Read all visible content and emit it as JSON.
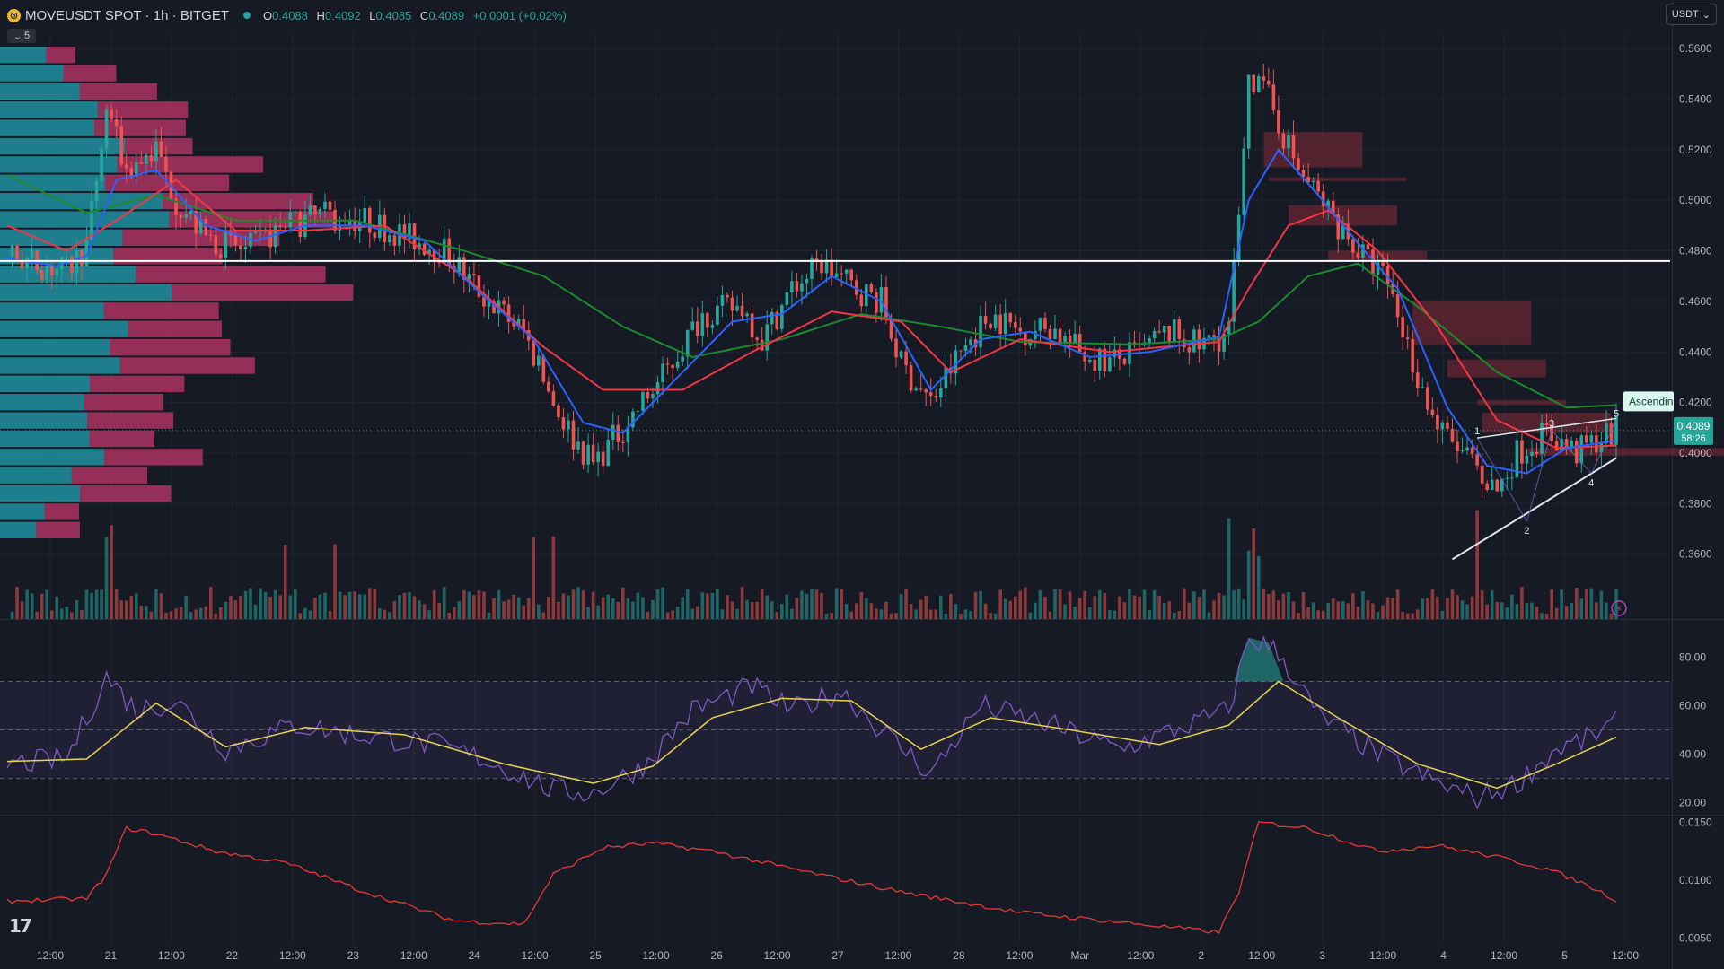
{
  "header": {
    "symbol": "MOVEUSDT SPOT · 1h · BITGET",
    "coin_glyph": "◎",
    "ohlc": {
      "o_label": "O",
      "o": "0.4088",
      "h_label": "H",
      "h": "0.4092",
      "l_label": "L",
      "l": "0.4085",
      "c_label": "C",
      "c": "0.4089",
      "change": "+0.0001 (+0.02%)"
    },
    "collapse_count": "5",
    "currency": "USDT"
  },
  "colors": {
    "background": "#161a25",
    "up": "#26a69a",
    "down": "#ef5350",
    "ema_fast": "#2962ff",
    "ema_mid": "#f23645",
    "ema_slow": "#1b8a2c",
    "rsi": "#7e57c2",
    "rsi_ma": "#e8d352",
    "atr": "#e53935",
    "vp_up": "#23a0b0",
    "vp_down": "#c7386b"
  },
  "chart_data": [
    {
      "type": "candlestick",
      "pane": "price",
      "ylim": [
        0.345,
        0.565
      ],
      "y_ticks": [
        "0.5600",
        "0.5400",
        "0.5200",
        "0.5000",
        "0.4800",
        "0.4600",
        "0.4400",
        "0.4200",
        "0.4000",
        "0.3800",
        "0.3600"
      ],
      "x_ticks": [
        "12:00",
        "21",
        "12:00",
        "22",
        "12:00",
        "23",
        "12:00",
        "24",
        "12:00",
        "25",
        "12:00",
        "26",
        "12:00",
        "27",
        "12:00",
        "28",
        "12:00",
        "Mar",
        "12:00",
        "2",
        "12:00",
        "3",
        "12:00",
        "4",
        "12:00",
        "5",
        "12:00"
      ],
      "close_path": [
        [
          0,
          0.478
        ],
        [
          8,
          0.474
        ],
        [
          12,
          0.472
        ],
        [
          16,
          0.482
        ],
        [
          20,
          0.535
        ],
        [
          24,
          0.512
        ],
        [
          30,
          0.52
        ],
        [
          34,
          0.5
        ],
        [
          40,
          0.485
        ],
        [
          48,
          0.48
        ],
        [
          56,
          0.49
        ],
        [
          64,
          0.494
        ],
        [
          72,
          0.492
        ],
        [
          80,
          0.486
        ],
        [
          88,
          0.48
        ],
        [
          96,
          0.462
        ],
        [
          104,
          0.448
        ],
        [
          110,
          0.42
        ],
        [
          114,
          0.406
        ],
        [
          118,
          0.396
        ],
        [
          124,
          0.41
        ],
        [
          132,
          0.43
        ],
        [
          140,
          0.455
        ],
        [
          148,
          0.458
        ],
        [
          152,
          0.445
        ],
        [
          158,
          0.465
        ],
        [
          164,
          0.475
        ],
        [
          170,
          0.466
        ],
        [
          176,
          0.46
        ],
        [
          180,
          0.435
        ],
        [
          186,
          0.42
        ],
        [
          192,
          0.44
        ],
        [
          198,
          0.455
        ],
        [
          204,
          0.448
        ],
        [
          210,
          0.45
        ],
        [
          216,
          0.44
        ],
        [
          222,
          0.436
        ],
        [
          228,
          0.44
        ],
        [
          234,
          0.448
        ],
        [
          240,
          0.442
        ],
        [
          246,
          0.448
        ],
        [
          250,
          0.55
        ],
        [
          254,
          0.54
        ],
        [
          260,
          0.512
        ],
        [
          266,
          0.496
        ],
        [
          272,
          0.48
        ],
        [
          278,
          0.468
        ],
        [
          284,
          0.43
        ],
        [
          288,
          0.41
        ],
        [
          294,
          0.398
        ],
        [
          300,
          0.385
        ],
        [
          304,
          0.4
        ],
        [
          310,
          0.408
        ],
        [
          316,
          0.4
        ],
        [
          320,
          0.405
        ],
        [
          324,
          0.4089
        ]
      ],
      "ema_fast_path": [
        [
          0,
          0.477
        ],
        [
          10,
          0.474
        ],
        [
          16,
          0.478
        ],
        [
          22,
          0.508
        ],
        [
          30,
          0.512
        ],
        [
          40,
          0.49
        ],
        [
          50,
          0.484
        ],
        [
          60,
          0.49
        ],
        [
          72,
          0.49
        ],
        [
          84,
          0.484
        ],
        [
          96,
          0.462
        ],
        [
          106,
          0.445
        ],
        [
          116,
          0.412
        ],
        [
          124,
          0.408
        ],
        [
          134,
          0.428
        ],
        [
          146,
          0.452
        ],
        [
          156,
          0.455
        ],
        [
          166,
          0.47
        ],
        [
          176,
          0.46
        ],
        [
          186,
          0.425
        ],
        [
          196,
          0.445
        ],
        [
          206,
          0.448
        ],
        [
          218,
          0.438
        ],
        [
          230,
          0.44
        ],
        [
          244,
          0.446
        ],
        [
          250,
          0.5
        ],
        [
          256,
          0.52
        ],
        [
          264,
          0.502
        ],
        [
          272,
          0.483
        ],
        [
          280,
          0.465
        ],
        [
          290,
          0.418
        ],
        [
          298,
          0.395
        ],
        [
          306,
          0.392
        ],
        [
          314,
          0.402
        ],
        [
          324,
          0.405
        ]
      ],
      "ema_mid_path": [
        [
          0,
          0.49
        ],
        [
          12,
          0.48
        ],
        [
          22,
          0.492
        ],
        [
          34,
          0.508
        ],
        [
          46,
          0.488
        ],
        [
          60,
          0.488
        ],
        [
          76,
          0.49
        ],
        [
          92,
          0.47
        ],
        [
          108,
          0.442
        ],
        [
          120,
          0.425
        ],
        [
          136,
          0.425
        ],
        [
          150,
          0.44
        ],
        [
          166,
          0.456
        ],
        [
          180,
          0.452
        ],
        [
          190,
          0.432
        ],
        [
          204,
          0.445
        ],
        [
          222,
          0.44
        ],
        [
          244,
          0.444
        ],
        [
          250,
          0.465
        ],
        [
          258,
          0.49
        ],
        [
          266,
          0.496
        ],
        [
          276,
          0.48
        ],
        [
          288,
          0.45
        ],
        [
          300,
          0.413
        ],
        [
          312,
          0.402
        ],
        [
          324,
          0.403
        ]
      ],
      "ema_slow_path": [
        [
          0,
          0.51
        ],
        [
          16,
          0.495
        ],
        [
          30,
          0.502
        ],
        [
          46,
          0.492
        ],
        [
          70,
          0.492
        ],
        [
          92,
          0.48
        ],
        [
          108,
          0.47
        ],
        [
          124,
          0.45
        ],
        [
          138,
          0.438
        ],
        [
          156,
          0.445
        ],
        [
          172,
          0.455
        ],
        [
          188,
          0.45
        ],
        [
          204,
          0.444
        ],
        [
          226,
          0.443
        ],
        [
          244,
          0.445
        ],
        [
          252,
          0.452
        ],
        [
          262,
          0.47
        ],
        [
          272,
          0.475
        ],
        [
          284,
          0.458
        ],
        [
          300,
          0.432
        ],
        [
          314,
          0.418
        ],
        [
          324,
          0.419
        ]
      ],
      "horizontal_line": 0.476,
      "pattern": {
        "name": "Ascendin",
        "points": [
          {
            "label": "1",
            "x": 296,
            "y": 0.406
          },
          {
            "label": "2",
            "x": 306,
            "y": 0.373
          },
          {
            "label": "3",
            "x": 311,
            "y": 0.409
          },
          {
            "label": "4",
            "x": 319,
            "y": 0.392
          },
          {
            "label": "5",
            "x": 324,
            "y": 0.413
          }
        ]
      },
      "price_tag": {
        "value": "0.4089",
        "countdown": "58:26"
      }
    },
    {
      "type": "line",
      "pane": "rsi",
      "ylim": [
        18,
        92
      ],
      "y_ticks": [
        "80.00",
        "60.00",
        "40.00",
        "20.00"
      ],
      "bands": [
        30,
        50,
        70
      ],
      "series": [
        {
          "values": [
            [
              0,
              36
            ],
            [
              12,
              38
            ],
            [
              20,
              72
            ],
            [
              26,
              58
            ],
            [
              34,
              62
            ],
            [
              44,
              42
            ],
            [
              58,
              52
            ],
            [
              70,
              48
            ],
            [
              86,
              44
            ],
            [
              96,
              38
            ],
            [
              110,
              25
            ],
            [
              118,
              24
            ],
            [
              128,
              35
            ],
            [
              138,
              58
            ],
            [
              150,
              68
            ],
            [
              158,
              58
            ],
            [
              168,
              66
            ],
            [
              176,
              50
            ],
            [
              186,
              32
            ],
            [
              196,
              60
            ],
            [
              210,
              52
            ],
            [
              224,
              42
            ],
            [
              238,
              52
            ],
            [
              246,
              58
            ],
            [
              250,
              88
            ],
            [
              256,
              82
            ],
            [
              264,
              56
            ],
            [
              276,
              40
            ],
            [
              288,
              28
            ],
            [
              296,
              22
            ],
            [
              304,
              28
            ],
            [
              312,
              42
            ],
            [
              318,
              46
            ],
            [
              324,
              53
            ]
          ]
        },
        {
          "values": [
            [
              0,
              37
            ],
            [
              16,
              38
            ],
            [
              30,
              61
            ],
            [
              44,
              43
            ],
            [
              60,
              51
            ],
            [
              80,
              48
            ],
            [
              100,
              36
            ],
            [
              118,
              28
            ],
            [
              130,
              35
            ],
            [
              142,
              55
            ],
            [
              156,
              63
            ],
            [
              170,
              62
            ],
            [
              184,
              42
            ],
            [
              198,
              55
            ],
            [
              214,
              50
            ],
            [
              232,
              44
            ],
            [
              246,
              52
            ],
            [
              256,
              70
            ],
            [
              268,
              55
            ],
            [
              284,
              36
            ],
            [
              300,
              26
            ],
            [
              312,
              36
            ],
            [
              324,
              47
            ]
          ]
        }
      ]
    },
    {
      "type": "line",
      "pane": "atr",
      "ylim": [
        0.0048,
        0.0152
      ],
      "y_ticks": [
        "0.0150",
        "0.0100",
        "0.0050"
      ],
      "series": [
        {
          "values": [
            [
              0,
              0.0082
            ],
            [
              16,
              0.0084
            ],
            [
              20,
              0.0105
            ],
            [
              24,
              0.0145
            ],
            [
              30,
              0.014
            ],
            [
              42,
              0.0125
            ],
            [
              56,
              0.0115
            ],
            [
              72,
              0.009
            ],
            [
              90,
              0.0065
            ],
            [
              104,
              0.0062
            ],
            [
              110,
              0.0105
            ],
            [
              120,
              0.0128
            ],
            [
              130,
              0.0132
            ],
            [
              142,
              0.0125
            ],
            [
              160,
              0.0108
            ],
            [
              180,
              0.009
            ],
            [
              204,
              0.0072
            ],
            [
              228,
              0.0062
            ],
            [
              244,
              0.0055
            ],
            [
              248,
              0.009
            ],
            [
              252,
              0.015
            ],
            [
              262,
              0.0145
            ],
            [
              276,
              0.0125
            ],
            [
              288,
              0.013
            ],
            [
              300,
              0.012
            ],
            [
              310,
              0.011
            ],
            [
              318,
              0.0096
            ],
            [
              324,
              0.0083
            ]
          ]
        }
      ]
    }
  ]
}
